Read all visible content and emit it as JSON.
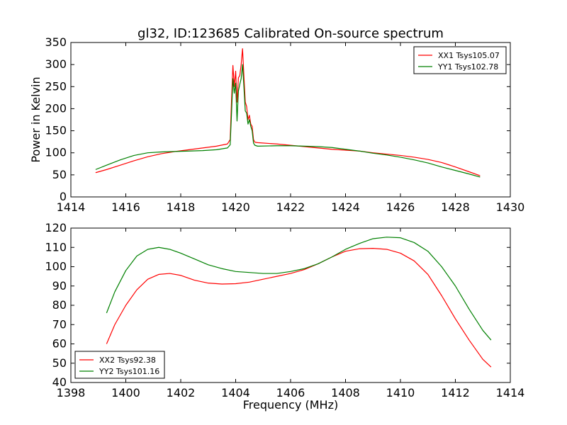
{
  "figure": {
    "background": "#ffffff",
    "series_colors": {
      "red": "#ff0000",
      "green": "#008000"
    }
  },
  "chart_data": [
    {
      "type": "line",
      "title": "gl32, ID:123685 Calibrated On-source spectrum",
      "xlabel": "",
      "ylabel": "Power in Kelvin",
      "xlim": [
        1414,
        1430
      ],
      "ylim": [
        0,
        350
      ],
      "xticks": [
        1414,
        1416,
        1418,
        1420,
        1422,
        1424,
        1426,
        1428,
        1430
      ],
      "yticks": [
        0,
        50,
        100,
        150,
        200,
        250,
        300,
        350
      ],
      "grid": false,
      "legend_position": "top-right",
      "series": [
        {
          "name": "XX1 Tsys105.07",
          "color": "#ff0000",
          "x": [
            1414.9,
            1415.3,
            1415.8,
            1416.3,
            1416.8,
            1417.3,
            1417.8,
            1418.3,
            1418.8,
            1419.3,
            1419.7,
            1419.8,
            1419.85,
            1419.9,
            1419.95,
            1420.0,
            1420.05,
            1420.1,
            1420.15,
            1420.2,
            1420.25,
            1420.3,
            1420.35,
            1420.4,
            1420.45,
            1420.5,
            1420.55,
            1420.6,
            1420.65,
            1420.7,
            1420.8,
            1421.5,
            1422.0,
            1422.5,
            1423.0,
            1423.5,
            1424.0,
            1424.5,
            1425.0,
            1425.5,
            1426.0,
            1426.5,
            1427.0,
            1427.5,
            1428.0,
            1428.5,
            1428.9
          ],
          "y": [
            55,
            62,
            72,
            82,
            91,
            98,
            103,
            107,
            111,
            115,
            120,
            130,
            220,
            298,
            250,
            285,
            215,
            270,
            275,
            300,
            336,
            275,
            215,
            205,
            175,
            185,
            165,
            160,
            130,
            124,
            123,
            120,
            117,
            114,
            111,
            108,
            106,
            104,
            100,
            97,
            94,
            90,
            85,
            78,
            68,
            57,
            48
          ]
        },
        {
          "name": "YY1 Tsys102.78",
          "color": "#008000",
          "x": [
            1414.9,
            1415.3,
            1415.8,
            1416.3,
            1416.8,
            1417.3,
            1417.8,
            1418.3,
            1418.8,
            1419.3,
            1419.7,
            1419.8,
            1419.85,
            1419.9,
            1419.95,
            1420.0,
            1420.05,
            1420.1,
            1420.15,
            1420.2,
            1420.25,
            1420.3,
            1420.35,
            1420.4,
            1420.45,
            1420.5,
            1420.55,
            1420.6,
            1420.65,
            1420.7,
            1420.8,
            1421.5,
            1422.0,
            1422.5,
            1423.0,
            1423.5,
            1424.0,
            1424.5,
            1425.0,
            1425.5,
            1426.0,
            1426.5,
            1427.0,
            1427.5,
            1428.0,
            1428.5,
            1428.9
          ],
          "y": [
            62,
            72,
            84,
            94,
            100,
            102,
            103,
            104,
            105,
            107,
            111,
            118,
            190,
            268,
            235,
            258,
            172,
            240,
            255,
            268,
            300,
            250,
            195,
            190,
            165,
            175,
            160,
            150,
            122,
            117,
            115,
            116,
            116,
            115,
            114,
            112,
            108,
            104,
            99,
            95,
            90,
            84,
            77,
            68,
            60,
            52,
            45
          ]
        }
      ]
    },
    {
      "type": "line",
      "title": "",
      "xlabel": "Frequency (MHz)",
      "ylabel": "",
      "xlim": [
        1398,
        1414
      ],
      "ylim": [
        40,
        120
      ],
      "xticks": [
        1398,
        1400,
        1402,
        1404,
        1406,
        1408,
        1410,
        1412,
        1414
      ],
      "yticks": [
        40,
        50,
        60,
        70,
        80,
        90,
        100,
        110,
        120
      ],
      "grid": false,
      "legend_position": "bottom-left",
      "series": [
        {
          "name": "XX2 Tsys92.38",
          "color": "#ff0000",
          "x": [
            1399.3,
            1399.6,
            1400.0,
            1400.4,
            1400.8,
            1401.2,
            1401.6,
            1402.0,
            1402.5,
            1403.0,
            1403.5,
            1404.0,
            1404.5,
            1405.0,
            1405.5,
            1406.0,
            1406.5,
            1407.0,
            1407.5,
            1408.0,
            1408.5,
            1409.0,
            1409.5,
            1410.0,
            1410.5,
            1411.0,
            1411.5,
            1412.0,
            1412.5,
            1413.0,
            1413.3
          ],
          "y": [
            60,
            70,
            80,
            88,
            93.5,
            96,
            96.5,
            95.5,
            93,
            91.5,
            91,
            91.2,
            92,
            93.5,
            95,
            96.5,
            98.5,
            101.5,
            105,
            108,
            109.3,
            109.5,
            109,
            107,
            103,
            96,
            85,
            73,
            62,
            52,
            48
          ]
        },
        {
          "name": "YY2 Tsys101.16",
          "color": "#008000",
          "x": [
            1399.3,
            1399.6,
            1400.0,
            1400.4,
            1400.8,
            1401.2,
            1401.6,
            1402.0,
            1402.5,
            1403.0,
            1403.5,
            1404.0,
            1404.5,
            1405.0,
            1405.5,
            1406.0,
            1406.5,
            1407.0,
            1407.5,
            1408.0,
            1408.5,
            1409.0,
            1409.5,
            1410.0,
            1410.5,
            1411.0,
            1411.5,
            1412.0,
            1412.5,
            1413.0,
            1413.3
          ],
          "y": [
            76,
            87,
            98,
            105.5,
            109,
            110,
            109,
            107,
            104,
            101,
            99,
            97.5,
            97,
            96.5,
            96.5,
            97.5,
            99,
            101.5,
            105,
            109,
            112,
            114.5,
            115.3,
            115,
            112.5,
            108,
            100,
            90,
            78,
            67,
            62
          ]
        }
      ]
    }
  ]
}
